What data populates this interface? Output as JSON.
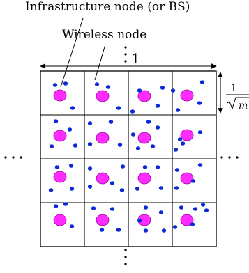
{
  "labels": {
    "infrastructure": "Infrastructure node (or BS)",
    "wireless": "Wireless node",
    "side_length": "1",
    "cell_frac_num": "1",
    "cell_frac_den": "m"
  },
  "grid": {
    "rows": 4,
    "cols": 4
  },
  "colors": {
    "infrastructure_node": "#ff2bff",
    "infrastructure_outline": "#9b009b",
    "wireless_node": "#0b2ad6",
    "grid_line": "#000000",
    "background": "#ffffff"
  },
  "legend_items": [
    "Infrastructure node (or BS)",
    "Wireless node"
  ]
}
